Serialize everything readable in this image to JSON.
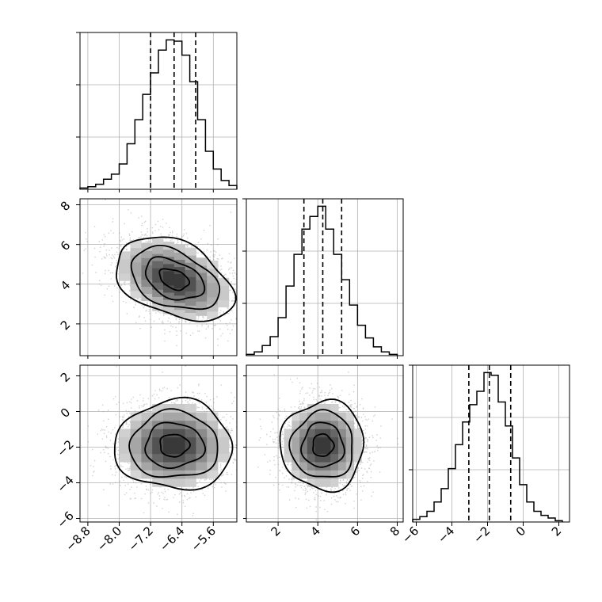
{
  "chart_data": {
    "type": "corner",
    "params": [
      {
        "range": [
          -9.0,
          -5.0
        ],
        "ticks": [
          -8.8,
          -8.0,
          -7.2,
          -6.4,
          -5.6
        ],
        "tick_labels": [
          "−8.8",
          "−8.0",
          "−7.2",
          "−6.4",
          "−5.6"
        ],
        "quantiles": [
          -7.2,
          -6.6,
          -6.05
        ]
      },
      {
        "range": [
          0.4,
          8.3
        ],
        "ticks": [
          2,
          4,
          6,
          8
        ],
        "tick_labels": [
          "2",
          "4",
          "6",
          "8"
        ],
        "quantiles": [
          3.3,
          4.25,
          5.2
        ]
      },
      {
        "range": [
          -6.2,
          2.6
        ],
        "ticks": [
          -6,
          -4,
          -2,
          0,
          2
        ],
        "tick_labels": [
          "−6",
          "−4",
          "−2",
          "0",
          "2"
        ],
        "quantiles": [
          -3.05,
          -1.9,
          -0.7
        ]
      }
    ],
    "histograms": [
      {
        "param": 0,
        "bins": [
          -9.0,
          -8.8,
          -8.6,
          -8.4,
          -8.2,
          -8.0,
          -7.8,
          -7.6,
          -7.4,
          -7.2,
          -7.0,
          -6.8,
          -6.6,
          -6.4,
          -6.2,
          -6.0,
          -5.8,
          -5.6,
          -5.4,
          -5.2,
          -5.0
        ],
        "counts": [
          1,
          2,
          4,
          8,
          12,
          20,
          36,
          55,
          75,
          92,
          110,
          118,
          117,
          106,
          85,
          55,
          30,
          16,
          7,
          3
        ]
      },
      {
        "param": 1,
        "bins": [
          0.4,
          0.8,
          1.2,
          1.6,
          2.0,
          2.4,
          2.8,
          3.2,
          3.6,
          4.0,
          4.4,
          4.8,
          5.2,
          5.6,
          6.0,
          6.4,
          6.8,
          7.2,
          7.6,
          8.0
        ],
        "counts": [
          1,
          3,
          8,
          15,
          30,
          55,
          80,
          100,
          110,
          118,
          100,
          80,
          60,
          40,
          24,
          14,
          7,
          3,
          1
        ]
      },
      {
        "param": 2,
        "bins": [
          -6.2,
          -5.8,
          -5.4,
          -5.0,
          -4.6,
          -4.2,
          -3.8,
          -3.4,
          -3.0,
          -2.6,
          -2.2,
          -1.8,
          -1.4,
          -1.0,
          -0.6,
          -0.2,
          0.2,
          0.6,
          1.0,
          1.4,
          1.8,
          2.2
        ],
        "counts": [
          2,
          4,
          8,
          15,
          25,
          40,
          58,
          75,
          88,
          98,
          112,
          110,
          90,
          72,
          48,
          28,
          15,
          8,
          5,
          3,
          1
        ]
      }
    ],
    "scatter": [
      {
        "x_param": 0,
        "y_param": 1,
        "mean": [
          -6.6,
          4.25
        ],
        "sd": [
          0.75,
          1.05
        ],
        "rho": -0.38
      },
      {
        "x_param": 0,
        "y_param": 2,
        "mean": [
          -6.6,
          -1.9
        ],
        "sd": [
          0.75,
          1.25
        ],
        "rho": 0.0
      },
      {
        "x_param": 1,
        "y_param": 2,
        "mean": [
          4.25,
          -1.9
        ],
        "sd": [
          1.05,
          1.25
        ],
        "rho": 0.0
      }
    ],
    "contour_levels": [
      0.5,
      1.0,
      1.5,
      2.0
    ],
    "grid": true
  }
}
